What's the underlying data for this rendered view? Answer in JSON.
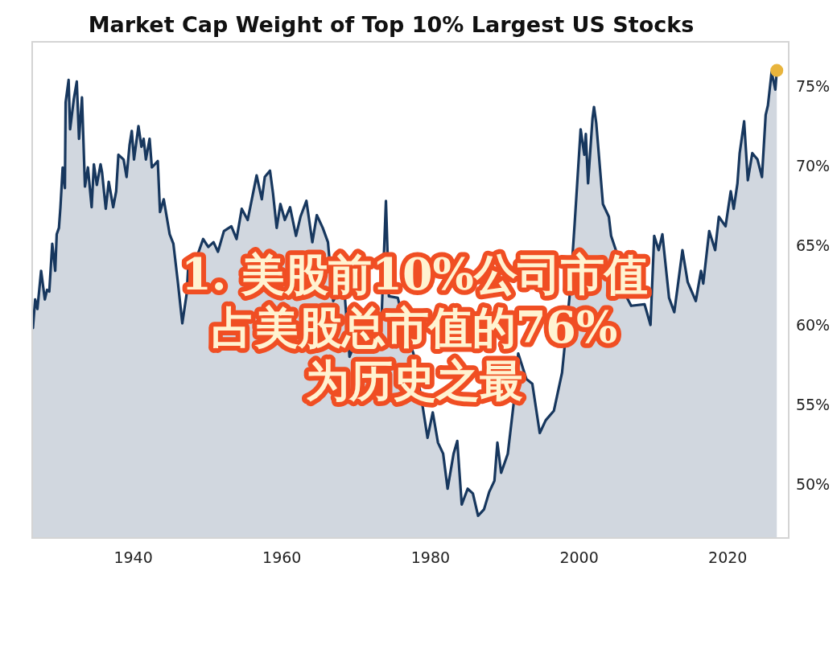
{
  "chart_data": {
    "type": "area",
    "title": "Market Cap Weight of Top 10% Largest US Stocks",
    "annotations": [
      "1. 美股前10%公司市值",
      "占美股总市值的76%",
      "为历史之最"
    ],
    "xlim": [
      1926.4,
      2028.2
    ],
    "xticks": [
      1940,
      1960,
      1980,
      2000,
      2020
    ],
    "ylim": [
      46.6,
      77.8
    ],
    "yticks": [
      {
        "value": 50,
        "label": "50%"
      },
      {
        "value": 55,
        "label": "55%"
      },
      {
        "value": 60,
        "label": "60%"
      },
      {
        "value": 65,
        "label": "65%"
      },
      {
        "value": 70,
        "label": "70%"
      },
      {
        "value": 75,
        "label": "75%"
      }
    ],
    "series": [
      {
        "color": "#17375e",
        "x": [
          1926.5,
          1926.8,
          1927.1,
          1927.6,
          1928.1,
          1928.4,
          1928.7,
          1929.1,
          1929.5,
          1929.7,
          1930.0,
          1930.2,
          1930.5,
          1930.8,
          1930.9,
          1931.3,
          1931.5,
          1932.0,
          1932.4,
          1932.7,
          1933.1,
          1933.5,
          1933.9,
          1934.4,
          1934.7,
          1935.1,
          1935.6,
          1935.8,
          1936.3,
          1936.7,
          1937.3,
          1937.7,
          1938.0,
          1938.7,
          1939.1,
          1939.5,
          1939.8,
          1940.1,
          1940.7,
          1941.1,
          1941.4,
          1941.7,
          1942.2,
          1942.5,
          1943.3,
          1943.6,
          1944.1,
          1944.9,
          1945.4,
          1946.0,
          1946.6,
          1947.2,
          1947.4,
          1948.5,
          1949.4,
          1950.1,
          1950.8,
          1951.4,
          1952.2,
          1953.2,
          1953.9,
          1954.6,
          1955.4,
          1956.6,
          1957.3,
          1957.7,
          1958.4,
          1958.8,
          1959.3,
          1959.8,
          1960.4,
          1961.1,
          1961.9,
          1962.5,
          1963.3,
          1964.1,
          1964.7,
          1965.5,
          1966.2,
          1966.9,
          1967.6,
          1968.4,
          1969.1,
          1969.8,
          1970.1,
          1971.7,
          1972.7,
          1973.4,
          1974.0,
          1974.4,
          1975.6,
          1976.6,
          1977.7,
          1978.8,
          1979.6,
          1980.3,
          1981.0,
          1981.7,
          1982.3,
          1983.1,
          1983.6,
          1984.2,
          1985.0,
          1985.7,
          1986.4,
          1987.2,
          1987.9,
          1988.6,
          1989.0,
          1989.5,
          1990.4,
          1991.2,
          1991.8,
          1992.9,
          1993.7,
          1994.7,
          1995.5,
          1996.6,
          1997.7,
          1998.8,
          1999.4,
          2000.2,
          2000.7,
          2000.9,
          2001.2,
          2001.8,
          2002.0,
          2002.3,
          2002.9,
          2003.2,
          2004.0,
          2004.3,
          2005.3,
          2005.9,
          2007.0,
          2008.8,
          2009.6,
          2010.1,
          2010.7,
          2011.2,
          2012.1,
          2012.8,
          2013.2,
          2013.9,
          2014.6,
          2015.7,
          2016.4,
          2016.7,
          2017.5,
          2018.3,
          2018.8,
          2019.7,
          2020.4,
          2020.8,
          2021.3,
          2021.6,
          2022.2,
          2022.7,
          2023.3,
          2024.0,
          2024.6,
          2025.1,
          2025.4,
          2025.9,
          2026.4,
          2026.6
        ],
        "values": [
          59.8,
          61.6,
          61.0,
          63.4,
          61.6,
          62.2,
          62.1,
          65.1,
          63.4,
          65.7,
          66.1,
          67.4,
          69.9,
          68.6,
          74.0,
          75.4,
          72.3,
          74.2,
          75.3,
          71.7,
          74.3,
          68.7,
          69.9,
          67.4,
          70.1,
          68.8,
          70.1,
          69.6,
          67.3,
          69.0,
          67.4,
          68.4,
          70.7,
          70.4,
          69.3,
          71.3,
          72.2,
          70.4,
          72.5,
          71.2,
          71.7,
          70.4,
          71.7,
          69.9,
          70.3,
          67.1,
          67.9,
          65.7,
          65.1,
          62.7,
          60.1,
          62.0,
          63.7,
          64.2,
          65.4,
          64.9,
          65.2,
          64.6,
          65.9,
          66.2,
          65.4,
          67.3,
          66.6,
          69.4,
          67.9,
          69.3,
          69.7,
          68.3,
          66.1,
          67.6,
          66.6,
          67.4,
          65.6,
          66.8,
          67.8,
          65.2,
          66.9,
          66.1,
          65.2,
          61.5,
          62.0,
          62.2,
          58.0,
          58.8,
          58.7,
          60.3,
          60.7,
          60.3,
          67.8,
          61.8,
          61.7,
          59.7,
          58.2,
          55.3,
          52.9,
          54.5,
          52.6,
          51.9,
          49.7,
          51.9,
          52.7,
          48.7,
          49.7,
          49.4,
          48.0,
          48.4,
          49.5,
          50.2,
          52.6,
          50.7,
          51.9,
          55.1,
          58.2,
          56.6,
          56.3,
          53.2,
          54.0,
          54.6,
          57.0,
          62.2,
          66.4,
          72.3,
          70.7,
          72.0,
          68.9,
          73.0,
          73.7,
          72.7,
          69.3,
          67.6,
          66.8,
          65.6,
          64.2,
          62.2,
          61.2,
          61.3,
          60.0,
          65.6,
          64.7,
          65.7,
          61.7,
          60.8,
          62.2,
          64.7,
          62.7,
          61.5,
          63.4,
          62.6,
          65.9,
          64.7,
          66.8,
          66.2,
          68.4,
          67.3,
          68.9,
          70.8,
          72.8,
          69.1,
          70.8,
          70.4,
          69.3,
          73.2,
          73.8,
          75.9,
          74.8,
          76.0
        ]
      },
      {
        "type": "scatter",
        "color": "#e8b43c",
        "x": [
          2026.6
        ],
        "values": [
          76.0
        ]
      }
    ]
  }
}
